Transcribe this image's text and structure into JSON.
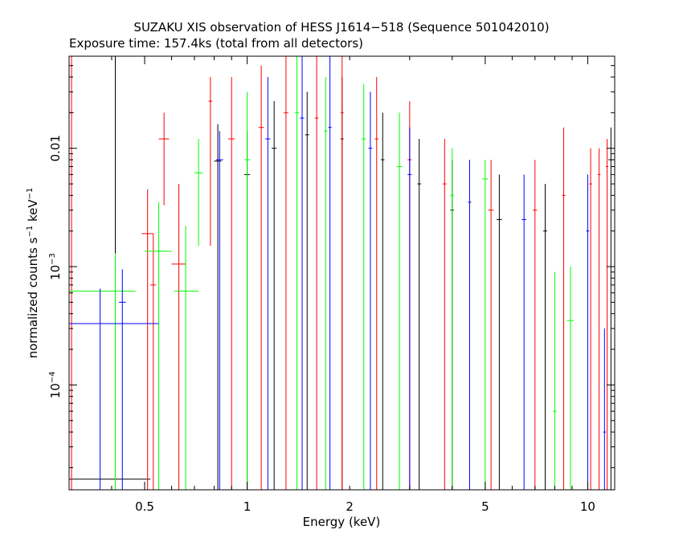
{
  "chart_data": {
    "type": "scatter",
    "title": "SUZAKU XIS observation of HESS J1614−518 (Sequence 501042010)",
    "subtitle": "Exposure time: 157.4ks (total from all detectors)",
    "xlabel": "Energy (keV)",
    "ylabel_main": "normalized counts s",
    "ylabel_sup1": "−1",
    "ylabel_mid": " keV",
    "ylabel_sup2": "−1",
    "x_scale": "log",
    "y_scale": "log",
    "xlim": [
      0.3,
      12
    ],
    "ylim": [
      1.3e-05,
      0.06
    ],
    "x_ticks": [
      {
        "value": 0.5,
        "label": "0.5"
      },
      {
        "value": 1,
        "label": "1"
      },
      {
        "value": 2,
        "label": "2"
      },
      {
        "value": 5,
        "label": "5"
      },
      {
        "value": 10,
        "label": "10"
      }
    ],
    "y_ticks": [
      {
        "value": 0.0001,
        "base": "10",
        "exp": "−4"
      },
      {
        "value": 0.001,
        "base": "10",
        "exp": "−3"
      },
      {
        "value": 0.01,
        "base": "0.01",
        "exp": ""
      }
    ],
    "series": [
      {
        "color": "#000000",
        "points": [
          {
            "x": 0.41,
            "xlo": 0.3,
            "xhi": 0.52,
            "y": 1.6e-05,
            "ylo": 1.3e-05,
            "yhi": 0.06
          },
          {
            "x": 0.82,
            "xlo": 0.8,
            "xhi": 0.84,
            "y": 0.0078,
            "ylo": 1.3e-05,
            "yhi": 0.016
          },
          {
            "x": 1.0,
            "xlo": 0.98,
            "xhi": 1.02,
            "y": 0.006,
            "ylo": 1.3e-05,
            "yhi": 0.014
          },
          {
            "x": 1.2,
            "xlo": 1.18,
            "xhi": 1.22,
            "y": 0.01,
            "ylo": 1.3e-05,
            "yhi": 0.025
          },
          {
            "x": 1.5,
            "xlo": 1.48,
            "xhi": 1.52,
            "y": 0.013,
            "ylo": 1.3e-05,
            "yhi": 0.03
          },
          {
            "x": 1.9,
            "xlo": 1.88,
            "xhi": 1.92,
            "y": 0.012,
            "ylo": 1.3e-05,
            "yhi": 0.04
          },
          {
            "x": 2.5,
            "xlo": 2.47,
            "xhi": 2.53,
            "y": 0.008,
            "ylo": 1.3e-05,
            "yhi": 0.02
          },
          {
            "x": 3.2,
            "xlo": 3.16,
            "xhi": 3.24,
            "y": 0.005,
            "ylo": 1.3e-05,
            "yhi": 0.012
          },
          {
            "x": 4.0,
            "xlo": 3.95,
            "xhi": 4.05,
            "y": 0.003,
            "ylo": 1.3e-05,
            "yhi": 0.008
          },
          {
            "x": 5.5,
            "xlo": 5.4,
            "xhi": 5.6,
            "y": 0.0025,
            "ylo": 1.3e-05,
            "yhi": 0.006
          },
          {
            "x": 7.5,
            "xlo": 7.4,
            "xhi": 7.6,
            "y": 0.002,
            "ylo": 1.3e-05,
            "yhi": 0.005
          },
          {
            "x": 11.7,
            "xlo": 11.5,
            "xhi": 11.9,
            "y": 0.008,
            "ylo": 1.3e-05,
            "yhi": 0.015
          }
        ]
      },
      {
        "color": "#ff0000",
        "points": [
          {
            "x": 0.305,
            "xlo": 0.3,
            "xhi": 0.31,
            "y": 0.02,
            "ylo": 1.3e-05,
            "yhi": 0.06
          },
          {
            "x": 0.51,
            "xlo": 0.49,
            "xhi": 0.53,
            "y": 0.0019,
            "ylo": 1.3e-05,
            "yhi": 0.0045
          },
          {
            "x": 0.53,
            "xlo": 0.52,
            "xhi": 0.54,
            "y": 0.0007,
            "ylo": 1.3e-05,
            "yhi": 0.0019
          },
          {
            "x": 0.57,
            "xlo": 0.55,
            "xhi": 0.59,
            "y": 0.012,
            "ylo": 0.0033,
            "yhi": 0.02
          },
          {
            "x": 0.63,
            "xlo": 0.6,
            "xhi": 0.66,
            "y": 0.00105,
            "ylo": 1.3e-05,
            "yhi": 0.005
          },
          {
            "x": 0.78,
            "xlo": 0.77,
            "xhi": 0.79,
            "y": 0.025,
            "ylo": 0.0015,
            "yhi": 0.04
          },
          {
            "x": 0.9,
            "xlo": 0.88,
            "xhi": 0.92,
            "y": 0.012,
            "ylo": 1.3e-05,
            "yhi": 0.04
          },
          {
            "x": 1.1,
            "xlo": 1.08,
            "xhi": 1.12,
            "y": 0.015,
            "ylo": 1.3e-05,
            "yhi": 0.05
          },
          {
            "x": 1.3,
            "xlo": 1.28,
            "xhi": 1.32,
            "y": 0.02,
            "ylo": 1.3e-05,
            "yhi": 0.06
          },
          {
            "x": 1.6,
            "xlo": 1.58,
            "xhi": 1.62,
            "y": 0.018,
            "ylo": 1.3e-05,
            "yhi": 0.06
          },
          {
            "x": 1.9,
            "xlo": 1.88,
            "xhi": 1.92,
            "y": 0.02,
            "ylo": 1.3e-05,
            "yhi": 0.06
          },
          {
            "x": 2.4,
            "xlo": 2.37,
            "xhi": 2.43,
            "y": 0.012,
            "ylo": 1.3e-05,
            "yhi": 0.04
          },
          {
            "x": 3.0,
            "xlo": 2.96,
            "xhi": 3.04,
            "y": 0.008,
            "ylo": 1.3e-05,
            "yhi": 0.025
          },
          {
            "x": 3.8,
            "xlo": 3.75,
            "xhi": 3.85,
            "y": 0.005,
            "ylo": 1.3e-05,
            "yhi": 0.012
          },
          {
            "x": 5.2,
            "xlo": 5.1,
            "xhi": 5.3,
            "y": 0.003,
            "ylo": 1.3e-05,
            "yhi": 0.008
          },
          {
            "x": 7.0,
            "xlo": 6.9,
            "xhi": 7.1,
            "y": 0.003,
            "ylo": 1.3e-05,
            "yhi": 0.008
          },
          {
            "x": 8.5,
            "xlo": 8.4,
            "xhi": 8.6,
            "y": 0.004,
            "ylo": 1.3e-05,
            "yhi": 0.015
          },
          {
            "x": 10.2,
            "xlo": 10.1,
            "xhi": 10.3,
            "y": 0.005,
            "ylo": 1.3e-05,
            "yhi": 0.01
          },
          {
            "x": 10.8,
            "xlo": 10.7,
            "xhi": 10.9,
            "y": 0.006,
            "ylo": 1.3e-05,
            "yhi": 0.01
          },
          {
            "x": 11.4,
            "xlo": 11.3,
            "xhi": 11.5,
            "y": 0.007,
            "ylo": 1.3e-05,
            "yhi": 0.012
          }
        ]
      },
      {
        "color": "#00ff00",
        "points": [
          {
            "x": 0.41,
            "xlo": 0.3,
            "xhi": 0.47,
            "y": 0.00062,
            "ylo": 1.3e-05,
            "yhi": 0.0013
          },
          {
            "x": 0.55,
            "xlo": 0.5,
            "xhi": 0.6,
            "y": 0.00135,
            "ylo": 1.3e-05,
            "yhi": 0.0035
          },
          {
            "x": 0.66,
            "xlo": 0.61,
            "xhi": 0.72,
            "y": 0.00062,
            "ylo": 1.3e-05,
            "yhi": 0.0022
          },
          {
            "x": 0.72,
            "xlo": 0.7,
            "xhi": 0.74,
            "y": 0.0062,
            "ylo": 0.0015,
            "yhi": 0.012
          },
          {
            "x": 1.0,
            "xlo": 0.98,
            "xhi": 1.02,
            "y": 0.008,
            "ylo": 1.3e-05,
            "yhi": 0.03
          },
          {
            "x": 1.4,
            "xlo": 1.38,
            "xhi": 1.42,
            "y": 0.02,
            "ylo": 1.3e-05,
            "yhi": 0.06
          },
          {
            "x": 1.7,
            "xlo": 1.68,
            "xhi": 1.72,
            "y": 0.014,
            "ylo": 1.3e-05,
            "yhi": 0.04
          },
          {
            "x": 2.2,
            "xlo": 2.17,
            "xhi": 2.23,
            "y": 0.012,
            "ylo": 1.3e-05,
            "yhi": 0.035
          },
          {
            "x": 2.8,
            "xlo": 2.75,
            "xhi": 2.85,
            "y": 0.007,
            "ylo": 1.3e-05,
            "yhi": 0.02
          },
          {
            "x": 4.0,
            "xlo": 3.95,
            "xhi": 4.05,
            "y": 0.004,
            "ylo": 1.3e-05,
            "yhi": 0.01
          },
          {
            "x": 5.0,
            "xlo": 4.9,
            "xhi": 5.1,
            "y": 0.0055,
            "ylo": 1.3e-05,
            "yhi": 0.008
          },
          {
            "x": 8.0,
            "xlo": 7.9,
            "xhi": 8.1,
            "y": 6e-05,
            "ylo": 1.3e-05,
            "yhi": 0.0009
          },
          {
            "x": 8.9,
            "xlo": 8.7,
            "xhi": 9.1,
            "y": 0.00035,
            "ylo": 1.3e-05,
            "yhi": 0.001
          }
        ]
      },
      {
        "color": "#0000ff",
        "points": [
          {
            "x": 0.37,
            "xlo": 0.3,
            "xhi": 0.55,
            "y": 0.00033,
            "ylo": 1.3e-05,
            "yhi": 0.00065
          },
          {
            "x": 0.43,
            "xlo": 0.42,
            "xhi": 0.44,
            "y": 0.0005,
            "ylo": 1.3e-05,
            "yhi": 0.00095
          },
          {
            "x": 0.83,
            "xlo": 0.81,
            "xhi": 0.85,
            "y": 0.008,
            "ylo": 1.3e-05,
            "yhi": 0.014
          },
          {
            "x": 1.15,
            "xlo": 1.13,
            "xhi": 1.17,
            "y": 0.012,
            "ylo": 1.3e-05,
            "yhi": 0.04
          },
          {
            "x": 1.45,
            "xlo": 1.43,
            "xhi": 1.47,
            "y": 0.018,
            "ylo": 1.3e-05,
            "yhi": 0.06
          },
          {
            "x": 1.75,
            "xlo": 1.73,
            "xhi": 1.77,
            "y": 0.015,
            "ylo": 1.3e-05,
            "yhi": 0.06
          },
          {
            "x": 2.3,
            "xlo": 2.27,
            "xhi": 2.33,
            "y": 0.01,
            "ylo": 1.3e-05,
            "yhi": 0.03
          },
          {
            "x": 3.0,
            "xlo": 2.96,
            "xhi": 3.04,
            "y": 0.006,
            "ylo": 1.3e-05,
            "yhi": 0.015
          },
          {
            "x": 4.5,
            "xlo": 4.45,
            "xhi": 4.55,
            "y": 0.0035,
            "ylo": 1.3e-05,
            "yhi": 0.008
          },
          {
            "x": 6.5,
            "xlo": 6.4,
            "xhi": 6.6,
            "y": 0.0025,
            "ylo": 1.3e-05,
            "yhi": 0.006
          },
          {
            "x": 10.0,
            "xlo": 9.9,
            "xhi": 10.1,
            "y": 0.002,
            "ylo": 1.3e-05,
            "yhi": 0.006
          },
          {
            "x": 11.2,
            "xlo": 11.1,
            "xhi": 11.3,
            "y": 4e-05,
            "ylo": 1.3e-05,
            "yhi": 0.0003
          }
        ]
      }
    ]
  }
}
